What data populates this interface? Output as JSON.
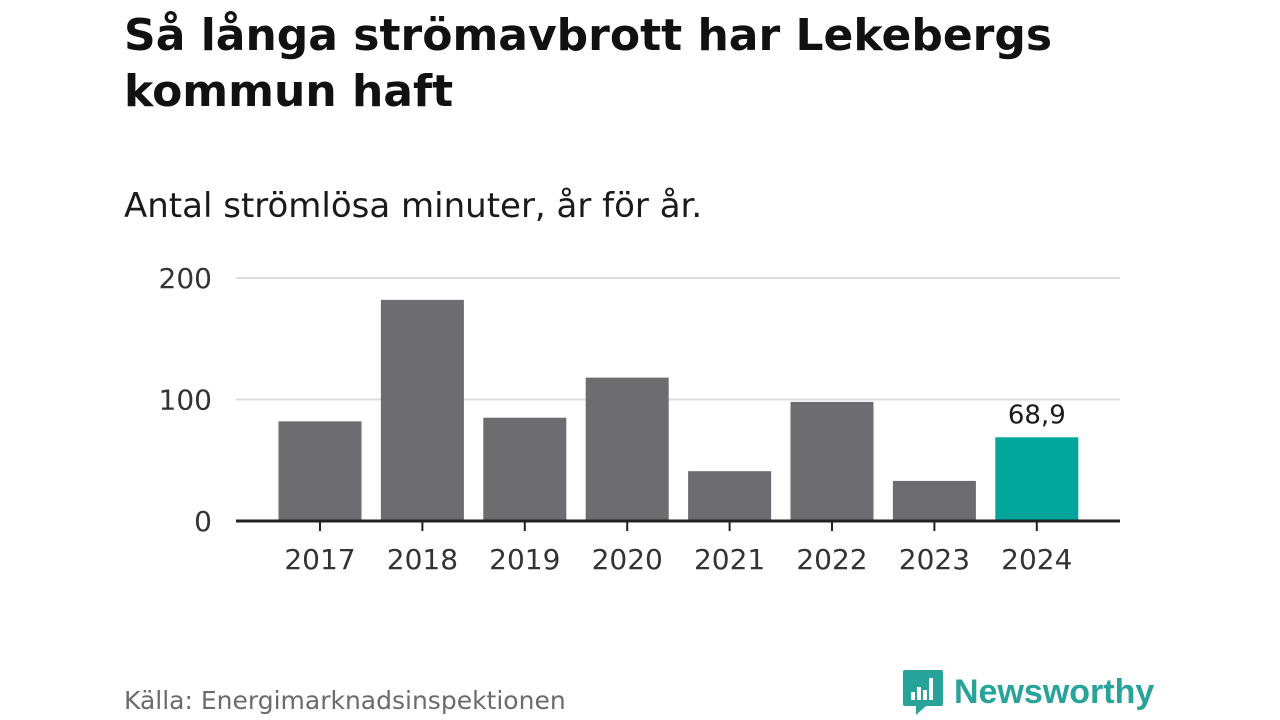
{
  "title": "Så långa strömavbrott har Lekebergs kommun haft",
  "subtitle": "Antal strömlösa minuter, år för år.",
  "source": "Källa: Energimarknadsinspektionen",
  "brand": {
    "name": "Newsworthy",
    "icon": "newsworthy-logo-icon"
  },
  "colors": {
    "bar": "#6d6c71",
    "highlight": "#00a69c",
    "grid": "#dcdcdc",
    "axis": "#222222",
    "brand": "#27a39a"
  },
  "chart_data": {
    "type": "bar",
    "title": "Så långa strömavbrott har Lekebergs kommun haft",
    "subtitle": "Antal strömlösa minuter, år för år.",
    "xlabel": "",
    "ylabel": "",
    "categories": [
      "2017",
      "2018",
      "2019",
      "2020",
      "2021",
      "2022",
      "2023",
      "2024"
    ],
    "values": [
      82,
      182,
      85,
      118,
      41,
      98,
      33,
      68.9
    ],
    "highlight_index": 7,
    "data_labels": [
      {
        "index": 7,
        "text": "68,9"
      }
    ],
    "ylim": [
      0,
      200
    ],
    "yticks": [
      0,
      100,
      200
    ],
    "grid": true
  }
}
